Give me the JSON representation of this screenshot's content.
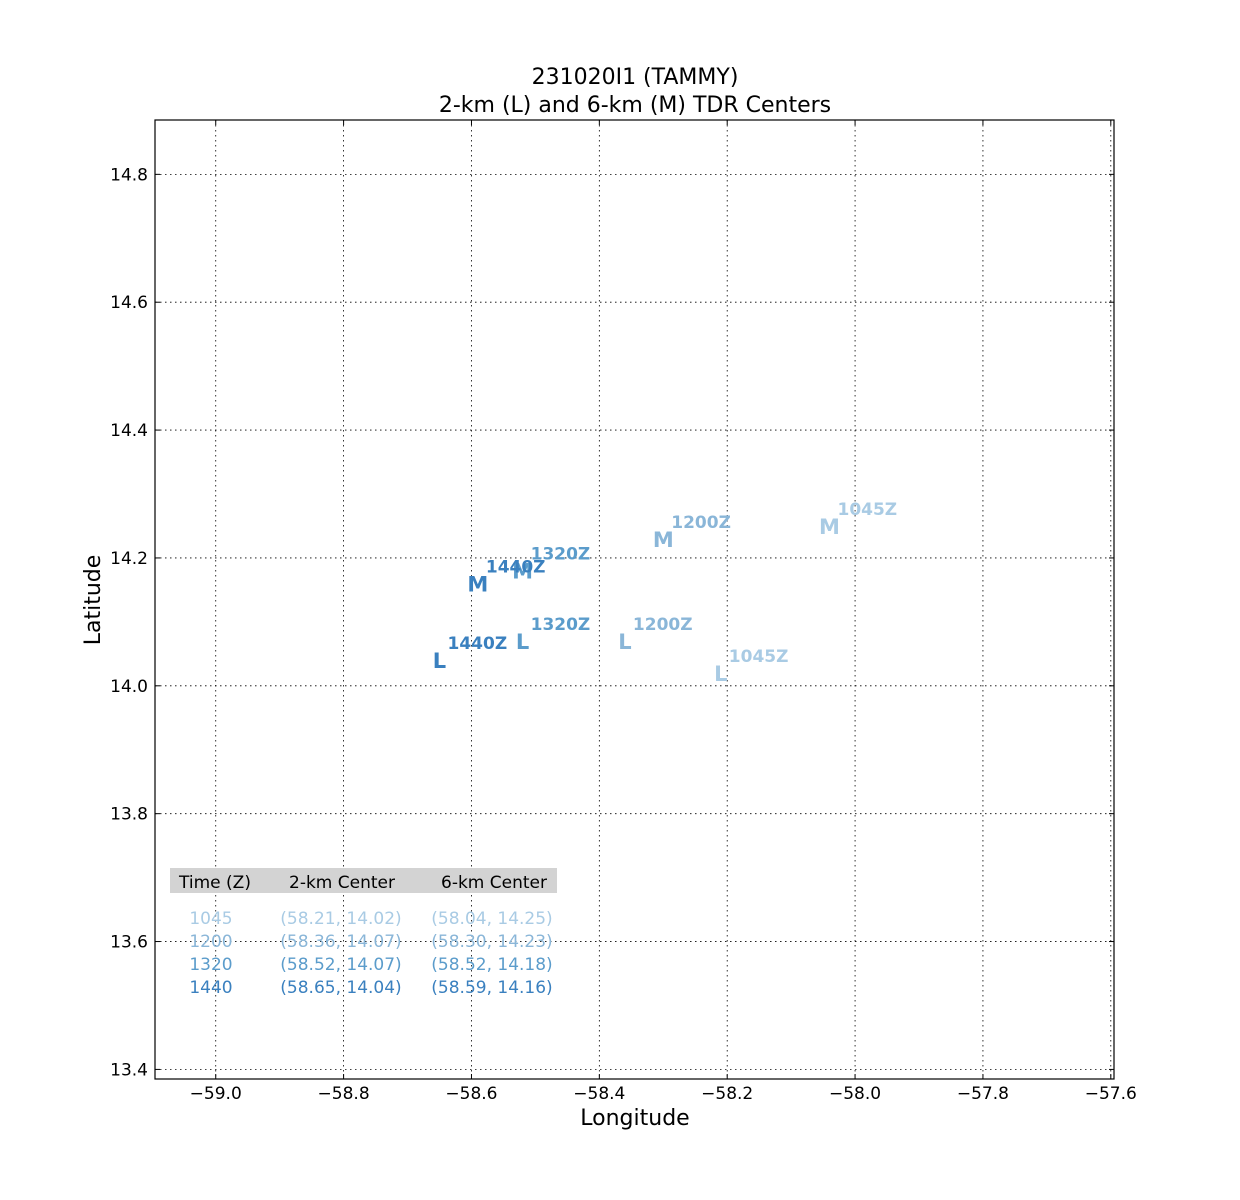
{
  "chart_data": {
    "type": "scatter",
    "title": "231020I1 (TAMMY)",
    "subtitle": "2-km (L) and 6-km (M) TDR Centers",
    "xlabel": "Longitude",
    "ylabel": "Latitude",
    "xlim": [
      -59.095,
      -57.595
    ],
    "ylim": [
      13.385,
      14.885
    ],
    "xticks": [
      "−59.0",
      "−58.8",
      "−58.6",
      "−58.4",
      "−58.2",
      "−58.0",
      "−57.8",
      "−57.6"
    ],
    "xtick_values": [
      -59.0,
      -58.8,
      -58.6,
      -58.4,
      -58.2,
      -58.0,
      -57.8,
      -57.6
    ],
    "yticks": [
      "13.4",
      "13.6",
      "13.8",
      "14.0",
      "14.2",
      "14.4",
      "14.6",
      "14.8"
    ],
    "ytick_values": [
      13.4,
      13.6,
      13.8,
      14.0,
      14.2,
      14.4,
      14.6,
      14.8
    ],
    "grid": true,
    "series": [
      {
        "name": "2-km",
        "marker": "L",
        "points": [
          {
            "time": "1045Z",
            "x": -58.21,
            "y": 14.02
          },
          {
            "time": "1200Z",
            "x": -58.36,
            "y": 14.07
          },
          {
            "time": "1320Z",
            "x": -58.52,
            "y": 14.07
          },
          {
            "time": "1440Z",
            "x": -58.65,
            "y": 14.04
          }
        ]
      },
      {
        "name": "6-km",
        "marker": "M",
        "points": [
          {
            "time": "1045Z",
            "x": -58.04,
            "y": 14.25
          },
          {
            "time": "1200Z",
            "x": -58.3,
            "y": 14.23
          },
          {
            "time": "1320Z",
            "x": -58.52,
            "y": 14.18
          },
          {
            "time": "1440Z",
            "x": -58.59,
            "y": 14.16
          }
        ]
      }
    ],
    "time_colors": [
      "#a9cbe4",
      "#8ab6d8",
      "#5b9ccb",
      "#3a80bf"
    ],
    "table": {
      "headers": [
        "Time (Z)",
        "2-km Center",
        "6-km Center"
      ],
      "rows": [
        [
          "1045",
          "(58.21, 14.02)",
          "(58.04, 14.25)"
        ],
        [
          "1200",
          "(58.36, 14.07)",
          "(58.30, 14.23)"
        ],
        [
          "1320",
          "(58.52, 14.07)",
          "(58.52, 14.18)"
        ],
        [
          "1440",
          "(58.65, 14.04)",
          "(58.59, 14.16)"
        ]
      ],
      "header_bg": "#d3d3d3"
    }
  }
}
